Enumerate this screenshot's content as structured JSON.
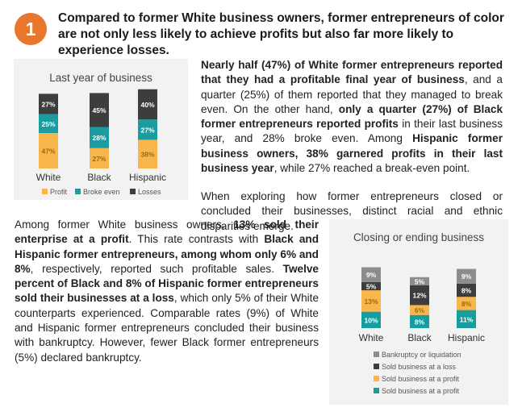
{
  "badge": "1",
  "headline": "Compared to former White business owners, former entrepreneurs of color are not only less likely to achieve profits but also far more likely to experience losses.",
  "paragraphs": {
    "p1": [
      {
        "b": true,
        "t": "Nearly half (47%) of White former entrepreneurs reported that they had a profitable final year of business"
      },
      {
        "b": false,
        "t": ", and a quarter (25%) of them reported that they managed to break even. On the other hand, "
      },
      {
        "b": true,
        "t": "only a quarter (27%) of Black former entrepreneurs reported profits"
      },
      {
        "b": false,
        "t": " in their last business year, and 28% broke even. Among "
      },
      {
        "b": true,
        "t": "Hispanic former business owners, 38% garnered profits in their last business year"
      },
      {
        "b": false,
        "t": ", while 27% reached a break-even point."
      }
    ],
    "p2": [
      {
        "b": false,
        "t": "When exploring how former entrepreneurs closed or concluded their businesses, distinct racial and ethnic disparities emerge."
      }
    ],
    "p3": [
      {
        "b": false,
        "t": "Among former White business owners, "
      },
      {
        "b": true,
        "t": "13% sold their enterprise at a profit"
      },
      {
        "b": false,
        "t": ". This rate contrasts with "
      },
      {
        "b": true,
        "t": "Black and Hispanic former entrepreneurs, among whom only 6% and 8%"
      },
      {
        "b": false,
        "t": ", respectively, reported such profitable sales. "
      },
      {
        "b": true,
        "t": "Twelve percent of Black and 8% of Hispanic former entrepreneurs sold their businesses at a loss"
      },
      {
        "b": false,
        "t": ", which only 5% of their White counterparts experienced. Comparable rates (9%) of White and Hispanic former entrepreneurs concluded their business with bankruptcy. However, fewer Black former entrepreneurs (5%) declared bankruptcy."
      }
    ]
  },
  "colors": {
    "profit": "#f8b64c",
    "break_even": "#1a9ca0",
    "losses": "#3d3d3d",
    "sold_profit": "#f8b64c",
    "sold_loss": "#3d3d3d",
    "bankruptcy": "#8c8c8c",
    "sold_at_profit": "#169d9d",
    "badge": "#e8762d",
    "chart_bg": "#f2f2f2"
  },
  "chart_data": [
    {
      "type": "bar",
      "stacked": true,
      "title": "Last year of business",
      "categories": [
        "White",
        "Black",
        "Hispanic"
      ],
      "series": [
        {
          "name": "Profit",
          "values": [
            47,
            27,
            38
          ],
          "labels": [
            "47%",
            "27%",
            "38%"
          ],
          "color": "#f8b64c",
          "label_color": "#9a6a12"
        },
        {
          "name": "Broke even",
          "values": [
            25,
            28,
            27
          ],
          "labels": [
            "25%",
            "28%",
            "27%"
          ],
          "color": "#1a9ca0",
          "label_color": "#ffffff"
        },
        {
          "name": "Losses",
          "values": [
            27,
            45,
            40
          ],
          "labels": [
            "27%",
            "45%",
            "40%"
          ],
          "color": "#3d3d3d",
          "label_color": "#ffffff"
        }
      ],
      "legend_position": "bottom"
    },
    {
      "type": "bar",
      "stacked": true,
      "title": "Closing or ending business",
      "categories": [
        "White",
        "Black",
        "Hispanic"
      ],
      "series": [
        {
          "name": "Sold business at a profit",
          "values": [
            10,
            8,
            11
          ],
          "labels": [
            "10%",
            "8%",
            "11%"
          ],
          "color": "#169d9d",
          "label_color": "#ffffff"
        },
        {
          "name": "Sold business at a profit",
          "values": [
            13,
            6,
            8
          ],
          "labels": [
            "13%",
            "6%",
            "8%"
          ],
          "color": "#f8b64c",
          "label_color": "#9a6a12"
        },
        {
          "name": "Sold business at a loss",
          "values": [
            5,
            12,
            8
          ],
          "labels": [
            "5%",
            "12%",
            "8%"
          ],
          "color": "#3d3d3d",
          "label_color": "#ffffff"
        },
        {
          "name": "Bankruptcy or liquidation",
          "values": [
            9,
            5,
            9
          ],
          "labels": [
            "9%",
            "5%",
            "9%"
          ],
          "color": "#8c8c8c",
          "label_color": "#ffffff"
        }
      ],
      "legend_order": [
        3,
        2,
        1,
        0
      ],
      "legend_position": "bottom"
    }
  ]
}
